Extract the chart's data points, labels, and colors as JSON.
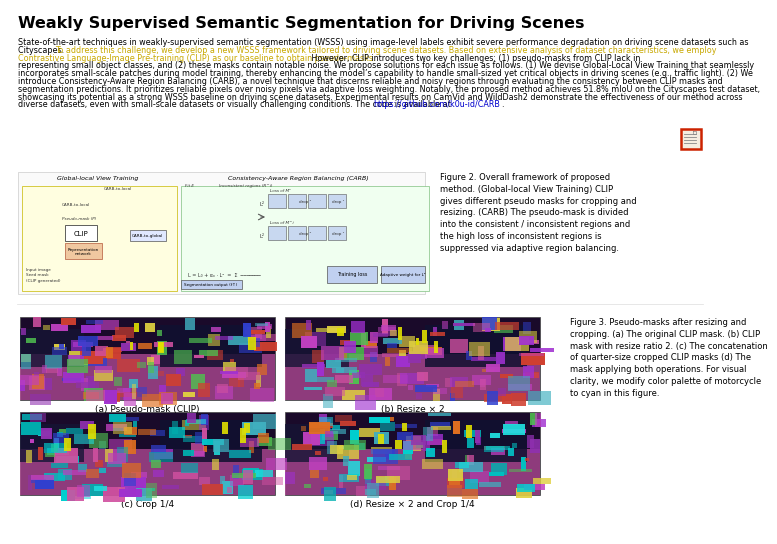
{
  "title": "Weakly Supervised Semantic Segmentation for Driving Scenes",
  "highlight_color": "#c8a800",
  "link_color": "#0000cc",
  "text_color": "#000000",
  "bg_color": "#ffffff",
  "title_fontsize": 11.5,
  "body_fontsize": 5.8,
  "caption_fontsize": 6.0,
  "sub_fontsize": 6.5,
  "fig2_caption": "Figure 2. Overall framework of proposed\nmethod. (Global-local View Training) CLIP\ngives different pseudo masks for cropping and\nresizing. (CARB) The pseudo-mask is divided\ninto the consistent / inconsistent regions and\nthe high loss of inconsistent regions is\nsuppressed via adaptive region balancing.",
  "fig3_caption": "Figure 3. Pseudo-masks after resizing and\ncropping. (a) The original CLIP mask. (b) CLIP\nmask with resize ratio 2. (c) The concatenation\nof quarter-size cropped CLIP masks (d) The\nmask applying both operations. For visual\nclarity, we modify color palette of motorcycle\nto cyan in this figure.",
  "sub_a": "(a) Pseudo-mask (CLIP)",
  "sub_b": "(b) Resize × 2",
  "sub_c": "(c) Crop 1/4",
  "sub_d": "(d) Resize × 2 and Crop 1/4",
  "link_text": "https://github.com/k0u-id/CARB",
  "abstract_line1": "State-of-the-art techniques in weakly-supervised semantic segmentation (WSSS) using image-level labels exhibit severe performance degradation on driving scene datasets such as",
  "abstract_line2_normal": "Cityscapes. ",
  "abstract_line2_hi": "To address this challenge, we develop a new WSSS framework tailored to driving scene datasets. Based on extensive analysis of dataset characteristics, we employ",
  "abstract_line3_hi": "Contrastive Language-Image Pre-training (CLIP) as our baseline to obtain pseudo-masks.",
  "abstract_line3_normal": " However, CLIP introduces two key challenges: (1) pseudo-masks from CLIP lack in",
  "abstract_line4": "representing small object classes, and (2) these masks contain notable noise. We propose solutions for each issue as follows. (1) We devise Global-Local View Training that seamlessly",
  "abstract_line5": "incorporates small-scale patches during model training, thereby enhancing the model’s capability to handle small-sized yet critical objects in driving scenes (e.g., traffic light). (2) We",
  "abstract_line6": "introduce Consistency-Aware Region Balancing (CARB), a novel technique that discerns reliable and noisy regions through evaluating the consistency between CLIP masks and",
  "abstract_line7": "segmentation predictions. It prioritizes reliable pixels over noisy pixels via adaptive loss weighting. Notably, the proposed method achieves 51.8% mIoU on the Cityscapes test dataset,",
  "abstract_line8": "showcasing its potential as a strong WSSS baseline on driving scene datasets. Experimental results on CamVid and WildDash2 demonstrate the effectiveness of our method across",
  "abstract_line9_normal": "diverse datasets, even with small-scale datasets or visually challenging conditions. The code is available at ",
  "abstract_line9_link": "https://github.com/k0u-id/CARB",
  "abstract_line9_end": "."
}
